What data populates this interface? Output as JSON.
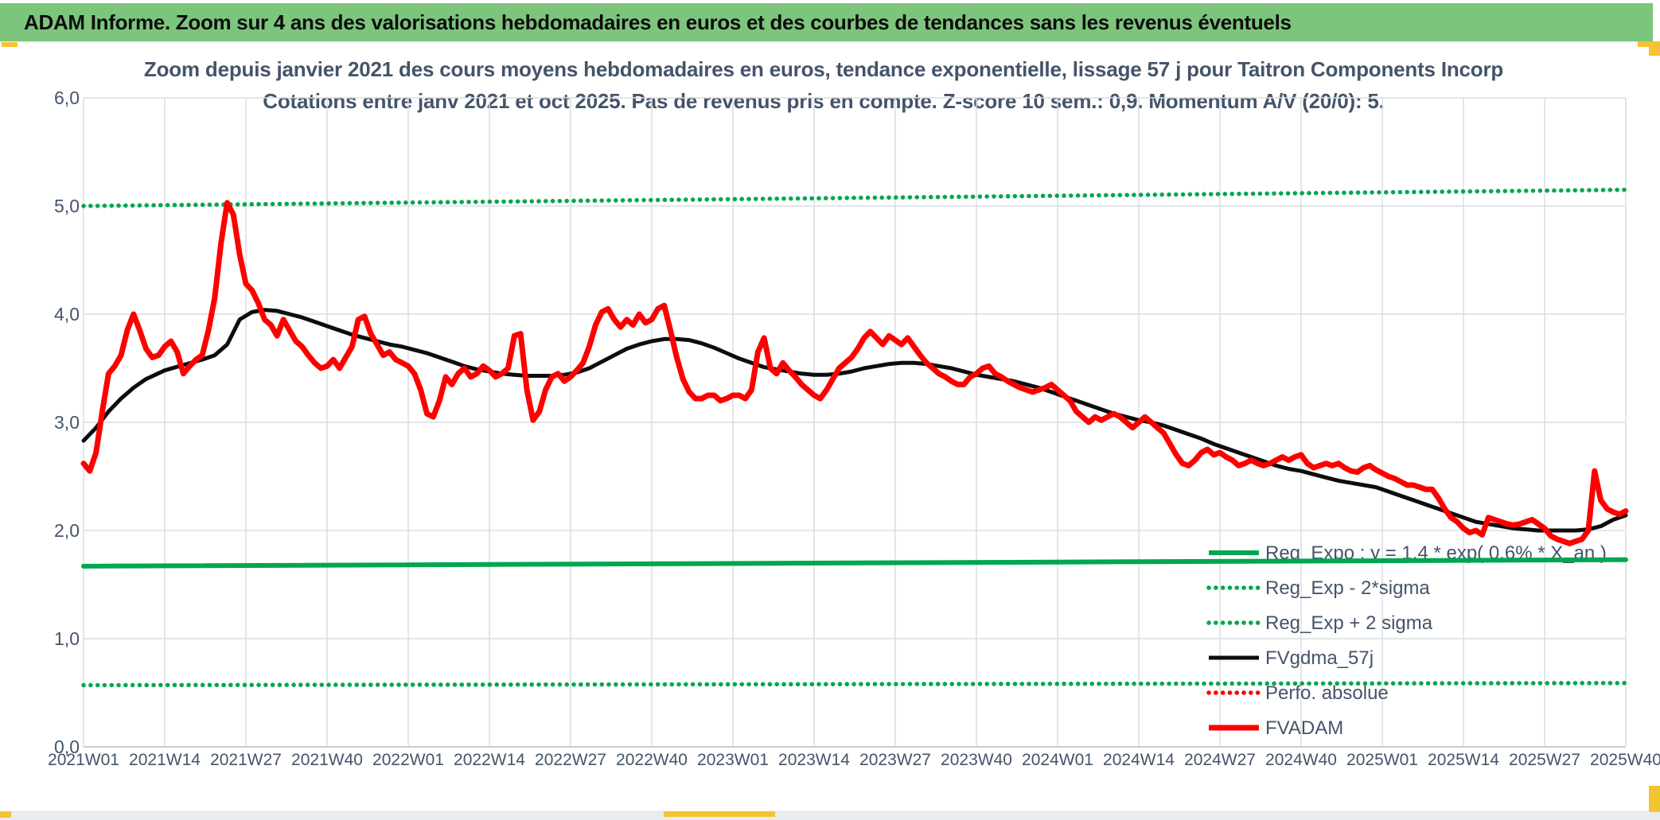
{
  "window": {
    "header_title": "ADAM Informe. Zoom sur 4 ans des valorisations hebdomadaires en euros et des courbes de tendances sans les revenus éventuels"
  },
  "chart": {
    "title_line1": "Zoom depuis janvier 2021 des cours moyens hebdomadaires en euros, tendance exponentielle, lissage 57 j pour Taitron Components Incorp",
    "title_line2": "Cotations entre janv 2021 et oct 2025. Pas de revenus pris en compte. Z-score 10 sem.: 0,9. Momentum A/V (20/0): 5."
  },
  "colors": {
    "banner_green": "#7dc57d",
    "series_green": "#00a651",
    "series_red": "#fe0000",
    "series_black": "#0d0d0d",
    "text_slate": "#44546a",
    "gridline": "#d9dde4",
    "accent_yellow": "#f2c431"
  },
  "chart_data": {
    "type": "line",
    "title": "Zoom depuis janvier 2021 des cours moyens hebdomadaires en euros, tendance exponentielle, lissage 57 j pour Taitron Components Incorp",
    "subtitle": "Cotations entre janv 2021 et oct 2025. Pas de revenus pris en compte. Z-score 10 sem.: 0,9. Momentum A/V (20/0): 5.",
    "xlabel": "",
    "ylabel": "",
    "ylim": [
      0,
      6
    ],
    "y_tick_labels": [
      "0,0",
      "1,0",
      "2,0",
      "3,0",
      "4,0",
      "5,0",
      "6,0"
    ],
    "x_unit": "week-index from 2021W01",
    "x_range_weeks": [
      0,
      247
    ],
    "x_ticks_every_weeks": 13,
    "x_tick_labels": [
      "2021W01",
      "2021W14",
      "2021W27",
      "2021W40",
      "2022W01",
      "2022W14",
      "2022W27",
      "2022W40",
      "2023W01",
      "2023W14",
      "2023W27",
      "2023W40",
      "2024W01",
      "2024W14",
      "2024W27",
      "2024W40",
      "2025W01",
      "2025W14",
      "2025W27",
      "2025W40"
    ],
    "grid": true,
    "legend_position": "inside-right-bottom",
    "series": [
      {
        "name": "Reg_Expo : y = 1,4 * exp( 0,6% *  X_an )",
        "color": "#00a651",
        "style": "solid",
        "width": 6,
        "points": [
          [
            0,
            1.67
          ],
          [
            247,
            1.73
          ]
        ]
      },
      {
        "name": "Reg_Exp - 2*sigma",
        "color": "#00a651",
        "style": "dotted",
        "width": 5.5,
        "points": [
          [
            0,
            0.57
          ],
          [
            247,
            0.59
          ]
        ]
      },
      {
        "name": "Reg_Exp + 2 sigma",
        "color": "#00a651",
        "style": "dotted",
        "width": 5.5,
        "points": [
          [
            0,
            5.0
          ],
          [
            247,
            5.15
          ]
        ]
      },
      {
        "name": "FVgdma_57j",
        "color": "#0d0d0d",
        "style": "solid",
        "width": 5,
        "points": [
          [
            0,
            2.83
          ],
          [
            2,
            2.95
          ],
          [
            4,
            3.1
          ],
          [
            6,
            3.22
          ],
          [
            8,
            3.32
          ],
          [
            10,
            3.4
          ],
          [
            13,
            3.48
          ],
          [
            16,
            3.53
          ],
          [
            19,
            3.58
          ],
          [
            21,
            3.62
          ],
          [
            23,
            3.72
          ],
          [
            25,
            3.95
          ],
          [
            27,
            4.02
          ],
          [
            29,
            4.04
          ],
          [
            31,
            4.03
          ],
          [
            33,
            4.0
          ],
          [
            35,
            3.97
          ],
          [
            37,
            3.93
          ],
          [
            39,
            3.89
          ],
          [
            41,
            3.85
          ],
          [
            43,
            3.81
          ],
          [
            45,
            3.78
          ],
          [
            47,
            3.75
          ],
          [
            49,
            3.72
          ],
          [
            51,
            3.7
          ],
          [
            53,
            3.67
          ],
          [
            55,
            3.64
          ],
          [
            57,
            3.6
          ],
          [
            59,
            3.56
          ],
          [
            61,
            3.52
          ],
          [
            63,
            3.49
          ],
          [
            65,
            3.47
          ],
          [
            67,
            3.45
          ],
          [
            69,
            3.44
          ],
          [
            71,
            3.43
          ],
          [
            73,
            3.43
          ],
          [
            75,
            3.43
          ],
          [
            77,
            3.44
          ],
          [
            79,
            3.46
          ],
          [
            81,
            3.5
          ],
          [
            83,
            3.56
          ],
          [
            85,
            3.62
          ],
          [
            87,
            3.68
          ],
          [
            89,
            3.72
          ],
          [
            91,
            3.75
          ],
          [
            93,
            3.77
          ],
          [
            95,
            3.77
          ],
          [
            97,
            3.76
          ],
          [
            99,
            3.73
          ],
          [
            101,
            3.69
          ],
          [
            103,
            3.64
          ],
          [
            105,
            3.59
          ],
          [
            107,
            3.55
          ],
          [
            109,
            3.51
          ],
          [
            111,
            3.49
          ],
          [
            113,
            3.47
          ],
          [
            115,
            3.45
          ],
          [
            117,
            3.44
          ],
          [
            119,
            3.44
          ],
          [
            121,
            3.45
          ],
          [
            123,
            3.47
          ],
          [
            125,
            3.5
          ],
          [
            127,
            3.52
          ],
          [
            129,
            3.54
          ],
          [
            131,
            3.55
          ],
          [
            133,
            3.55
          ],
          [
            135,
            3.54
          ],
          [
            137,
            3.52
          ],
          [
            139,
            3.5
          ],
          [
            141,
            3.47
          ],
          [
            143,
            3.44
          ],
          [
            145,
            3.42
          ],
          [
            147,
            3.4
          ],
          [
            149,
            3.38
          ],
          [
            151,
            3.35
          ],
          [
            153,
            3.32
          ],
          [
            155,
            3.28
          ],
          [
            157,
            3.24
          ],
          [
            159,
            3.2
          ],
          [
            161,
            3.16
          ],
          [
            163,
            3.12
          ],
          [
            165,
            3.08
          ],
          [
            167,
            3.05
          ],
          [
            169,
            3.02
          ],
          [
            171,
            3.0
          ],
          [
            173,
            2.97
          ],
          [
            175,
            2.93
          ],
          [
            177,
            2.89
          ],
          [
            179,
            2.85
          ],
          [
            181,
            2.8
          ],
          [
            183,
            2.76
          ],
          [
            185,
            2.72
          ],
          [
            187,
            2.68
          ],
          [
            189,
            2.64
          ],
          [
            191,
            2.6
          ],
          [
            193,
            2.57
          ],
          [
            195,
            2.55
          ],
          [
            197,
            2.52
          ],
          [
            199,
            2.49
          ],
          [
            201,
            2.46
          ],
          [
            203,
            2.44
          ],
          [
            205,
            2.42
          ],
          [
            207,
            2.4
          ],
          [
            209,
            2.36
          ],
          [
            211,
            2.32
          ],
          [
            213,
            2.28
          ],
          [
            215,
            2.24
          ],
          [
            217,
            2.2
          ],
          [
            219,
            2.16
          ],
          [
            221,
            2.12
          ],
          [
            223,
            2.08
          ],
          [
            225,
            2.06
          ],
          [
            227,
            2.04
          ],
          [
            229,
            2.02
          ],
          [
            231,
            2.01
          ],
          [
            233,
            2.0
          ],
          [
            235,
            2.0
          ],
          [
            237,
            2.0
          ],
          [
            239,
            2.0
          ],
          [
            241,
            2.01
          ],
          [
            243,
            2.04
          ],
          [
            245,
            2.1
          ],
          [
            247,
            2.14
          ]
        ]
      },
      {
        "name": "Perfo. absolue",
        "color": "#fe0000",
        "style": "dotted",
        "width": 5.5,
        "points": []
      },
      {
        "name": "FVADAM",
        "color": "#fe0000",
        "style": "solid",
        "width": 7,
        "x_start_week": 0,
        "x_step_weeks": 1,
        "values_weekly": [
          2.62,
          2.55,
          2.72,
          3.1,
          3.45,
          3.52,
          3.62,
          3.85,
          4.0,
          3.85,
          3.68,
          3.6,
          3.62,
          3.7,
          3.75,
          3.65,
          3.45,
          3.52,
          3.58,
          3.62,
          3.85,
          4.15,
          4.65,
          5.03,
          4.92,
          4.55,
          4.28,
          4.22,
          4.1,
          3.95,
          3.9,
          3.8,
          3.95,
          3.85,
          3.75,
          3.7,
          3.62,
          3.55,
          3.5,
          3.52,
          3.58,
          3.5,
          3.6,
          3.7,
          3.95,
          3.98,
          3.82,
          3.72,
          3.62,
          3.65,
          3.58,
          3.55,
          3.52,
          3.45,
          3.3,
          3.08,
          3.05,
          3.2,
          3.42,
          3.35,
          3.45,
          3.5,
          3.42,
          3.45,
          3.52,
          3.48,
          3.42,
          3.45,
          3.5,
          3.8,
          3.82,
          3.3,
          3.02,
          3.1,
          3.3,
          3.42,
          3.45,
          3.38,
          3.42,
          3.48,
          3.55,
          3.7,
          3.9,
          4.02,
          4.05,
          3.95,
          3.88,
          3.95,
          3.9,
          4.0,
          3.92,
          3.95,
          4.05,
          4.08,
          3.85,
          3.6,
          3.4,
          3.28,
          3.22,
          3.22,
          3.25,
          3.25,
          3.2,
          3.22,
          3.25,
          3.25,
          3.22,
          3.3,
          3.65,
          3.78,
          3.5,
          3.45,
          3.55,
          3.48,
          3.42,
          3.35,
          3.3,
          3.25,
          3.22,
          3.3,
          3.4,
          3.5,
          3.55,
          3.6,
          3.68,
          3.78,
          3.84,
          3.78,
          3.72,
          3.8,
          3.76,
          3.72,
          3.78,
          3.7,
          3.62,
          3.55,
          3.5,
          3.45,
          3.42,
          3.38,
          3.35,
          3.35,
          3.42,
          3.45,
          3.5,
          3.52,
          3.45,
          3.42,
          3.38,
          3.35,
          3.32,
          3.3,
          3.28,
          3.3,
          3.32,
          3.35,
          3.3,
          3.25,
          3.2,
          3.1,
          3.05,
          3.0,
          3.05,
          3.02,
          3.05,
          3.08,
          3.05,
          3.0,
          2.95,
          3.0,
          3.05,
          3.0,
          2.95,
          2.9,
          2.8,
          2.7,
          2.62,
          2.6,
          2.65,
          2.72,
          2.75,
          2.7,
          2.72,
          2.68,
          2.65,
          2.6,
          2.62,
          2.65,
          2.62,
          2.6,
          2.62,
          2.65,
          2.68,
          2.65,
          2.68,
          2.7,
          2.62,
          2.58,
          2.6,
          2.62,
          2.6,
          2.62,
          2.58,
          2.55,
          2.54,
          2.58,
          2.6,
          2.56,
          2.53,
          2.5,
          2.48,
          2.45,
          2.42,
          2.42,
          2.4,
          2.38,
          2.38,
          2.3,
          2.2,
          2.12,
          2.08,
          2.02,
          1.98,
          2.0,
          1.96,
          2.12,
          2.1,
          2.08,
          2.06,
          2.05,
          2.06,
          2.08,
          2.1,
          2.06,
          2.02,
          1.95,
          1.92,
          1.9,
          1.88,
          1.9,
          1.92,
          2.0,
          2.55,
          2.28,
          2.2,
          2.17,
          2.15,
          2.18
        ]
      }
    ]
  }
}
